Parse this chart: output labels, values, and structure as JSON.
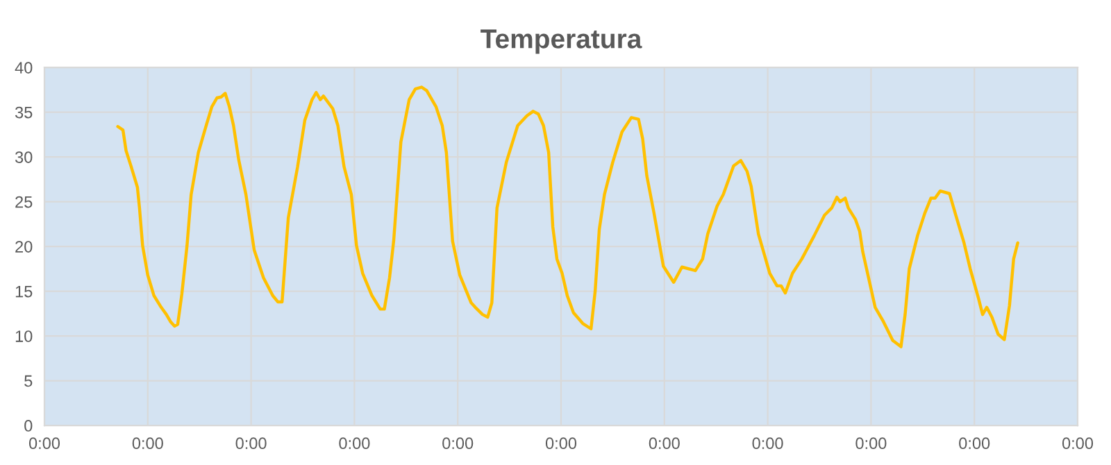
{
  "chart_data": {
    "type": "line",
    "title": "Temperatura",
    "xlim": [
      0,
      10
    ],
    "xticks": [
      {
        "value": 0,
        "label": "0:00"
      },
      {
        "value": 1,
        "label": "0:00"
      },
      {
        "value": 2,
        "label": "0:00"
      },
      {
        "value": 3,
        "label": "0:00"
      },
      {
        "value": 4,
        "label": "0:00"
      },
      {
        "value": 5,
        "label": "0:00"
      },
      {
        "value": 6,
        "label": "0:00"
      },
      {
        "value": 7,
        "label": "0:00"
      },
      {
        "value": 8,
        "label": "0:00"
      },
      {
        "value": 9,
        "label": "0:00"
      },
      {
        "value": 10,
        "label": "0:00"
      }
    ],
    "ylim": [
      0,
      40
    ],
    "yticks": [
      0,
      5,
      10,
      15,
      20,
      25,
      30,
      35,
      40
    ],
    "grid": true,
    "marker": "none",
    "line_style": "solid",
    "series": [
      {
        "color": "#ffc000",
        "x": [
          0.71,
          0.76,
          0.79,
          0.84,
          0.9,
          0.92,
          0.95,
          1.0,
          1.06,
          1.13,
          1.18,
          1.22,
          1.26,
          1.29,
          1.33,
          1.38,
          1.42,
          1.49,
          1.56,
          1.62,
          1.67,
          1.71,
          1.75,
          1.79,
          1.83,
          1.88,
          1.95,
          2.03,
          2.12,
          2.21,
          2.26,
          2.3,
          2.36,
          2.45,
          2.52,
          2.59,
          2.63,
          2.67,
          2.7,
          2.79,
          2.84,
          2.9,
          2.97,
          3.02,
          3.08,
          3.17,
          3.25,
          3.29,
          3.34,
          3.38,
          3.45,
          3.53,
          3.59,
          3.65,
          3.7,
          3.79,
          3.85,
          3.89,
          3.95,
          4.02,
          4.13,
          4.17,
          4.24,
          4.29,
          4.33,
          4.38,
          4.47,
          4.58,
          4.67,
          4.73,
          4.78,
          4.83,
          4.88,
          4.92,
          4.96,
          5.01,
          5.06,
          5.12,
          5.21,
          5.29,
          5.33,
          5.37,
          5.42,
          5.5,
          5.59,
          5.68,
          5.75,
          5.79,
          5.83,
          5.9,
          5.99,
          6.09,
          6.17,
          6.3,
          6.37,
          6.42,
          6.51,
          6.57,
          6.67,
          6.74,
          6.8,
          6.84,
          6.91,
          7.02,
          7.09,
          7.13,
          7.17,
          7.24,
          7.33,
          7.45,
          7.55,
          7.62,
          7.67,
          7.7,
          7.75,
          7.78,
          7.85,
          7.89,
          7.92,
          8.04,
          8.12,
          8.21,
          8.29,
          8.33,
          8.37,
          8.45,
          8.52,
          8.58,
          8.62,
          8.67,
          8.76,
          8.82,
          8.9,
          8.96,
          9.04,
          9.08,
          9.12,
          9.17,
          9.23,
          9.29,
          9.34,
          9.38,
          9.42
        ],
        "values": [
          33.4,
          33.0,
          30.7,
          28.9,
          26.6,
          24.3,
          20.1,
          16.8,
          14.5,
          13.2,
          12.4,
          11.6,
          11.1,
          11.3,
          14.7,
          20.1,
          25.8,
          30.5,
          33.3,
          35.6,
          36.6,
          36.7,
          37.1,
          35.6,
          33.5,
          29.7,
          25.8,
          19.6,
          16.5,
          14.5,
          13.8,
          13.8,
          23.2,
          28.9,
          34.1,
          36.4,
          37.2,
          36.4,
          36.8,
          35.4,
          33.5,
          28.9,
          25.8,
          20.1,
          17.0,
          14.5,
          13.0,
          13.0,
          16.5,
          20.6,
          31.7,
          36.4,
          37.6,
          37.8,
          37.4,
          35.6,
          33.5,
          30.5,
          20.6,
          16.8,
          13.7,
          13.2,
          12.4,
          12.1,
          13.7,
          24.3,
          29.4,
          33.5,
          34.6,
          35.1,
          34.8,
          33.5,
          30.5,
          22.2,
          18.6,
          17.0,
          14.5,
          12.6,
          11.4,
          10.8,
          15.0,
          21.9,
          25.8,
          29.4,
          32.8,
          34.4,
          34.2,
          32.0,
          27.9,
          23.7,
          17.8,
          16.0,
          17.7,
          17.3,
          18.6,
          21.4,
          24.5,
          25.8,
          29.0,
          29.6,
          28.4,
          26.7,
          21.4,
          17.0,
          15.6,
          15.6,
          14.8,
          17.0,
          18.6,
          21.2,
          23.5,
          24.3,
          25.5,
          25.0,
          25.4,
          24.3,
          23.0,
          21.7,
          19.4,
          13.2,
          11.6,
          9.5,
          8.8,
          12.4,
          17.5,
          21.2,
          23.7,
          25.4,
          25.4,
          26.2,
          25.9,
          23.5,
          20.4,
          17.5,
          14.2,
          12.4,
          13.2,
          12.1,
          10.2,
          9.6,
          13.4,
          18.6,
          20.4
        ]
      }
    ]
  }
}
